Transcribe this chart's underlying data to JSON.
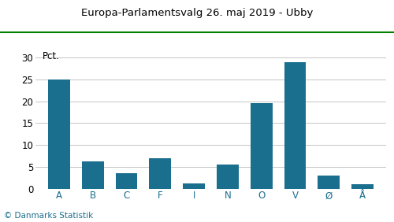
{
  "title": "Europa-Parlamentsvalg 26. maj 2019 - Ubby",
  "categories": [
    "A",
    "B",
    "C",
    "F",
    "I",
    "N",
    "O",
    "V",
    "Ø",
    "Å"
  ],
  "values": [
    25.0,
    6.3,
    3.5,
    7.0,
    1.2,
    5.5,
    19.5,
    29.0,
    3.0,
    1.0
  ],
  "bar_color": "#1a6e8e",
  "ylabel": "Pct.",
  "ylim": [
    0,
    32
  ],
  "yticks": [
    0,
    5,
    10,
    15,
    20,
    25,
    30
  ],
  "footer": "© Danmarks Statistik",
  "title_color": "#000000",
  "background_color": "#ffffff",
  "grid_color": "#bbbbbb",
  "title_line_color": "#008000",
  "footer_color": "#1a6e8e",
  "axes_label_color": "#1a6e8e",
  "title_fontsize": 9.5,
  "tick_fontsize": 8.5,
  "footer_fontsize": 7.5
}
